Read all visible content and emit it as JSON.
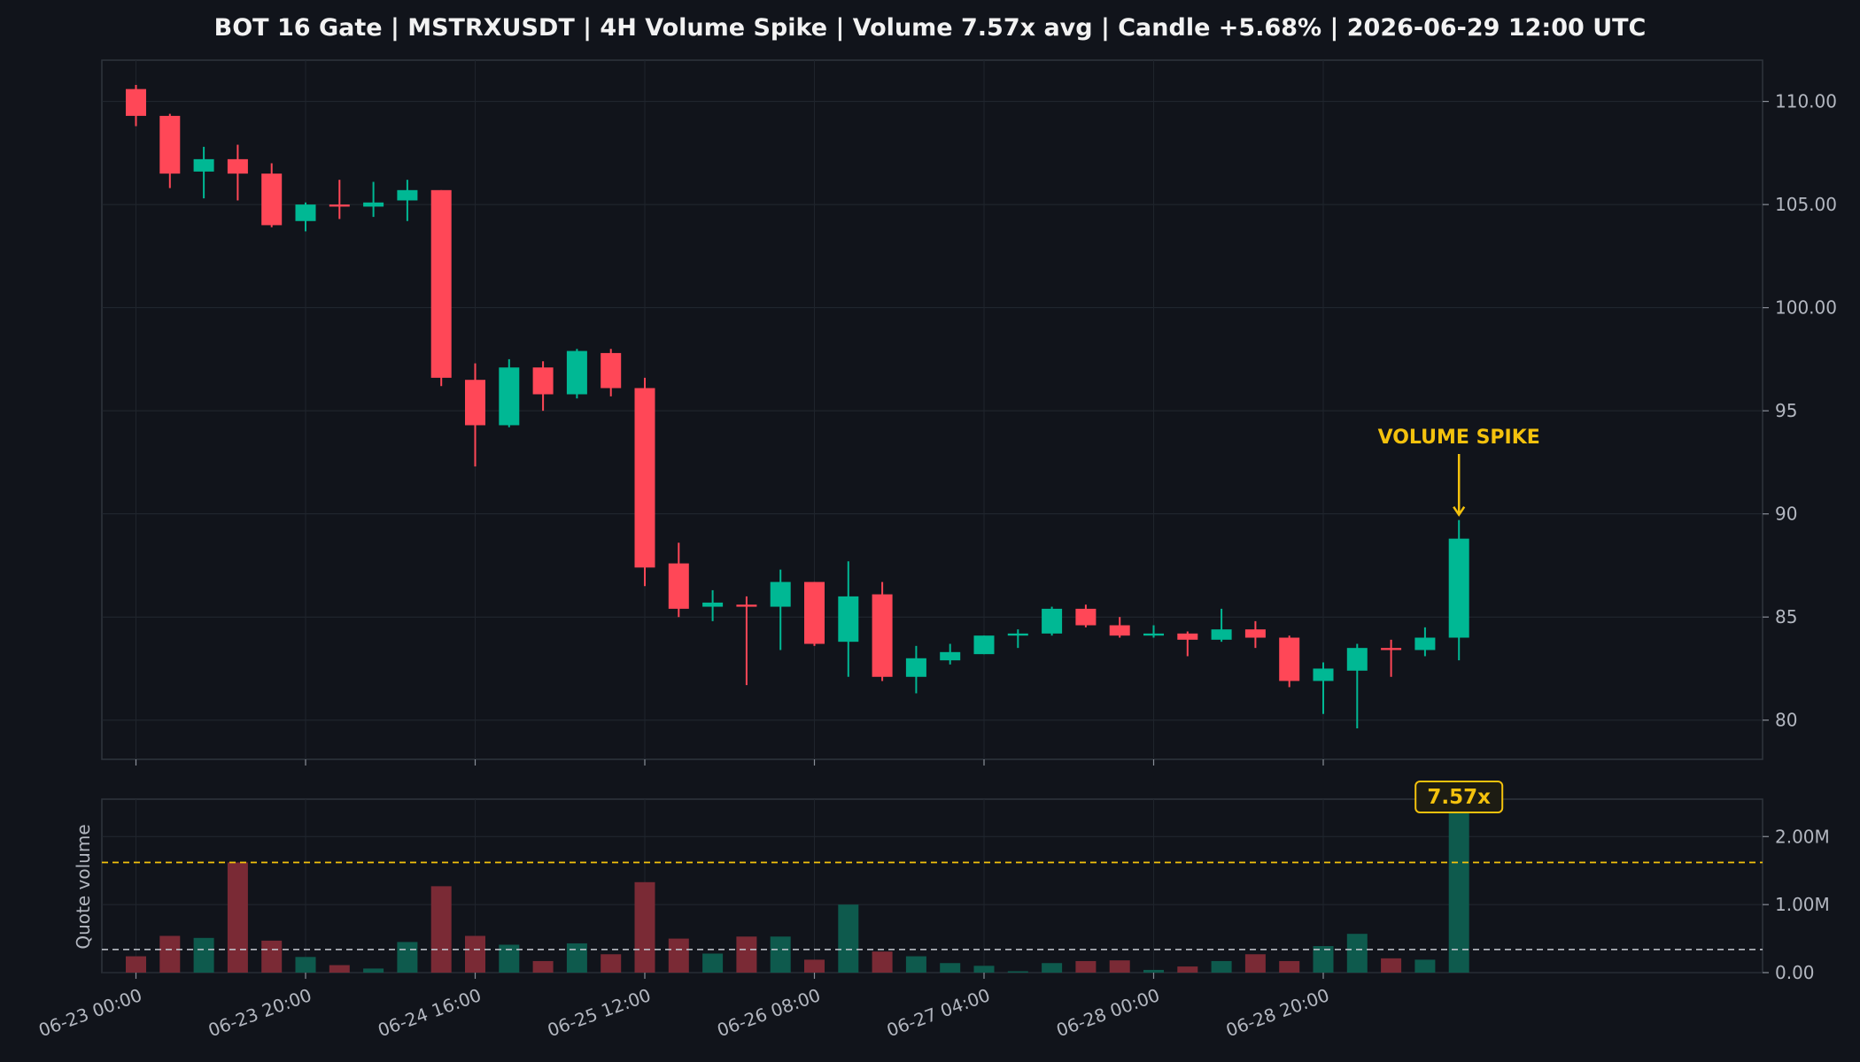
{
  "chart_data": {
    "title": "BOT 16 Gate | MSTRXUSDT | 4H Volume Spike | Volume 7.57x avg | Candle +5.68% | 2026-06-29 12:00 UTC",
    "type": "candlestick",
    "interval": "4H",
    "x_ticks": [
      "06-23 00:00",
      "06-23 20:00",
      "06-24 16:00",
      "06-25 12:00",
      "06-26 08:00",
      "06-27 04:00",
      "06-28 00:00",
      "06-28 20:00"
    ],
    "x_tick_candle_index": [
      0,
      5,
      10,
      15,
      20,
      25,
      30,
      35
    ],
    "price_axis": {
      "ylim": [
        78.1,
        112
      ],
      "ticks": [
        80,
        85,
        90,
        95,
        100,
        105,
        110
      ],
      "tick_labels": [
        "80",
        "85",
        "90",
        "95",
        "100.00",
        "105.00",
        "110.00"
      ]
    },
    "volume_axis": {
      "label": "Quote volume",
      "ylim": [
        0,
        2.55
      ],
      "ticks": [
        0,
        1,
        2
      ],
      "tick_labels": [
        "0.00",
        "1.00M",
        "2.00M"
      ],
      "unit": "M"
    },
    "candles": [
      {
        "o": 110.6,
        "h": 110.8,
        "l": 108.8,
        "c": 109.3
      },
      {
        "o": 109.3,
        "h": 109.4,
        "l": 105.8,
        "c": 106.5
      },
      {
        "o": 106.6,
        "h": 107.8,
        "l": 105.3,
        "c": 107.2
      },
      {
        "o": 107.2,
        "h": 107.9,
        "l": 105.2,
        "c": 106.5
      },
      {
        "o": 106.5,
        "h": 107.0,
        "l": 103.9,
        "c": 104.0
      },
      {
        "o": 104.2,
        "h": 105.1,
        "l": 103.7,
        "c": 105.0
      },
      {
        "o": 105.0,
        "h": 106.2,
        "l": 104.3,
        "c": 104.9
      },
      {
        "o": 104.9,
        "h": 106.1,
        "l": 104.4,
        "c": 105.1
      },
      {
        "o": 105.2,
        "h": 106.2,
        "l": 104.2,
        "c": 105.7
      },
      {
        "o": 105.7,
        "h": 105.7,
        "l": 96.2,
        "c": 96.6
      },
      {
        "o": 96.5,
        "h": 97.3,
        "l": 92.3,
        "c": 94.3
      },
      {
        "o": 94.3,
        "h": 97.5,
        "l": 94.2,
        "c": 97.1
      },
      {
        "o": 97.1,
        "h": 97.4,
        "l": 95.0,
        "c": 95.8
      },
      {
        "o": 95.8,
        "h": 98.0,
        "l": 95.6,
        "c": 97.9
      },
      {
        "o": 97.8,
        "h": 98.0,
        "l": 95.7,
        "c": 96.1
      },
      {
        "o": 96.1,
        "h": 96.6,
        "l": 86.5,
        "c": 87.4
      },
      {
        "o": 87.6,
        "h": 88.6,
        "l": 85.0,
        "c": 85.4
      },
      {
        "o": 85.5,
        "h": 86.3,
        "l": 84.8,
        "c": 85.7
      },
      {
        "o": 85.6,
        "h": 86.0,
        "l": 81.7,
        "c": 85.5
      },
      {
        "o": 85.5,
        "h": 87.3,
        "l": 83.4,
        "c": 86.7
      },
      {
        "o": 86.7,
        "h": 86.7,
        "l": 83.6,
        "c": 83.7
      },
      {
        "o": 83.8,
        "h": 87.7,
        "l": 82.1,
        "c": 86.0
      },
      {
        "o": 86.1,
        "h": 86.7,
        "l": 81.9,
        "c": 82.1
      },
      {
        "o": 82.1,
        "h": 83.6,
        "l": 81.3,
        "c": 83.0
      },
      {
        "o": 82.9,
        "h": 83.7,
        "l": 82.7,
        "c": 83.3
      },
      {
        "o": 83.2,
        "h": 84.1,
        "l": 83.2,
        "c": 84.1
      },
      {
        "o": 84.1,
        "h": 84.4,
        "l": 83.5,
        "c": 84.2
      },
      {
        "o": 84.2,
        "h": 85.5,
        "l": 84.1,
        "c": 85.4
      },
      {
        "o": 85.4,
        "h": 85.6,
        "l": 84.5,
        "c": 84.6
      },
      {
        "o": 84.6,
        "h": 85.0,
        "l": 84.0,
        "c": 84.1
      },
      {
        "o": 84.1,
        "h": 84.6,
        "l": 84.0,
        "c": 84.2
      },
      {
        "o": 84.2,
        "h": 84.3,
        "l": 83.1,
        "c": 83.9
      },
      {
        "o": 83.9,
        "h": 85.4,
        "l": 83.8,
        "c": 84.4
      },
      {
        "o": 84.4,
        "h": 84.8,
        "l": 83.5,
        "c": 84.0
      },
      {
        "o": 84.0,
        "h": 84.1,
        "l": 81.6,
        "c": 81.9
      },
      {
        "o": 81.9,
        "h": 82.8,
        "l": 80.3,
        "c": 82.5
      },
      {
        "o": 82.4,
        "h": 83.7,
        "l": 79.6,
        "c": 83.5
      },
      {
        "o": 83.5,
        "h": 83.9,
        "l": 82.1,
        "c": 83.4
      },
      {
        "o": 83.4,
        "h": 84.5,
        "l": 83.1,
        "c": 84.0
      },
      {
        "o": 84.0,
        "h": 89.7,
        "l": 82.9,
        "c": 88.8
      }
    ],
    "volumes": [
      0.24,
      0.54,
      0.51,
      1.62,
      0.47,
      0.23,
      0.11,
      0.06,
      0.45,
      1.27,
      0.54,
      0.41,
      0.17,
      0.43,
      0.27,
      1.33,
      0.5,
      0.28,
      0.53,
      0.53,
      0.19,
      1.0,
      0.31,
      0.24,
      0.14,
      0.1,
      0.02,
      0.14,
      0.17,
      0.18,
      0.04,
      0.09,
      0.17,
      0.27,
      0.17,
      0.39,
      0.57,
      0.21,
      0.19,
      2.6
    ],
    "avg_volume": 0.34,
    "spike_threshold": 1.62,
    "spike_index": 39,
    "annotations": {
      "price": "VOLUME SPIKE",
      "volume_badge": "7.57x"
    },
    "colors": {
      "up": "#00b894",
      "down": "#ff4757",
      "up_vol": "#0e5a4d",
      "down_vol": "#7a2a35",
      "spike": "#f4c20d",
      "background": "#11141b",
      "text": "#f2f2f2",
      "tick_text": "#b3b7c0"
    }
  }
}
